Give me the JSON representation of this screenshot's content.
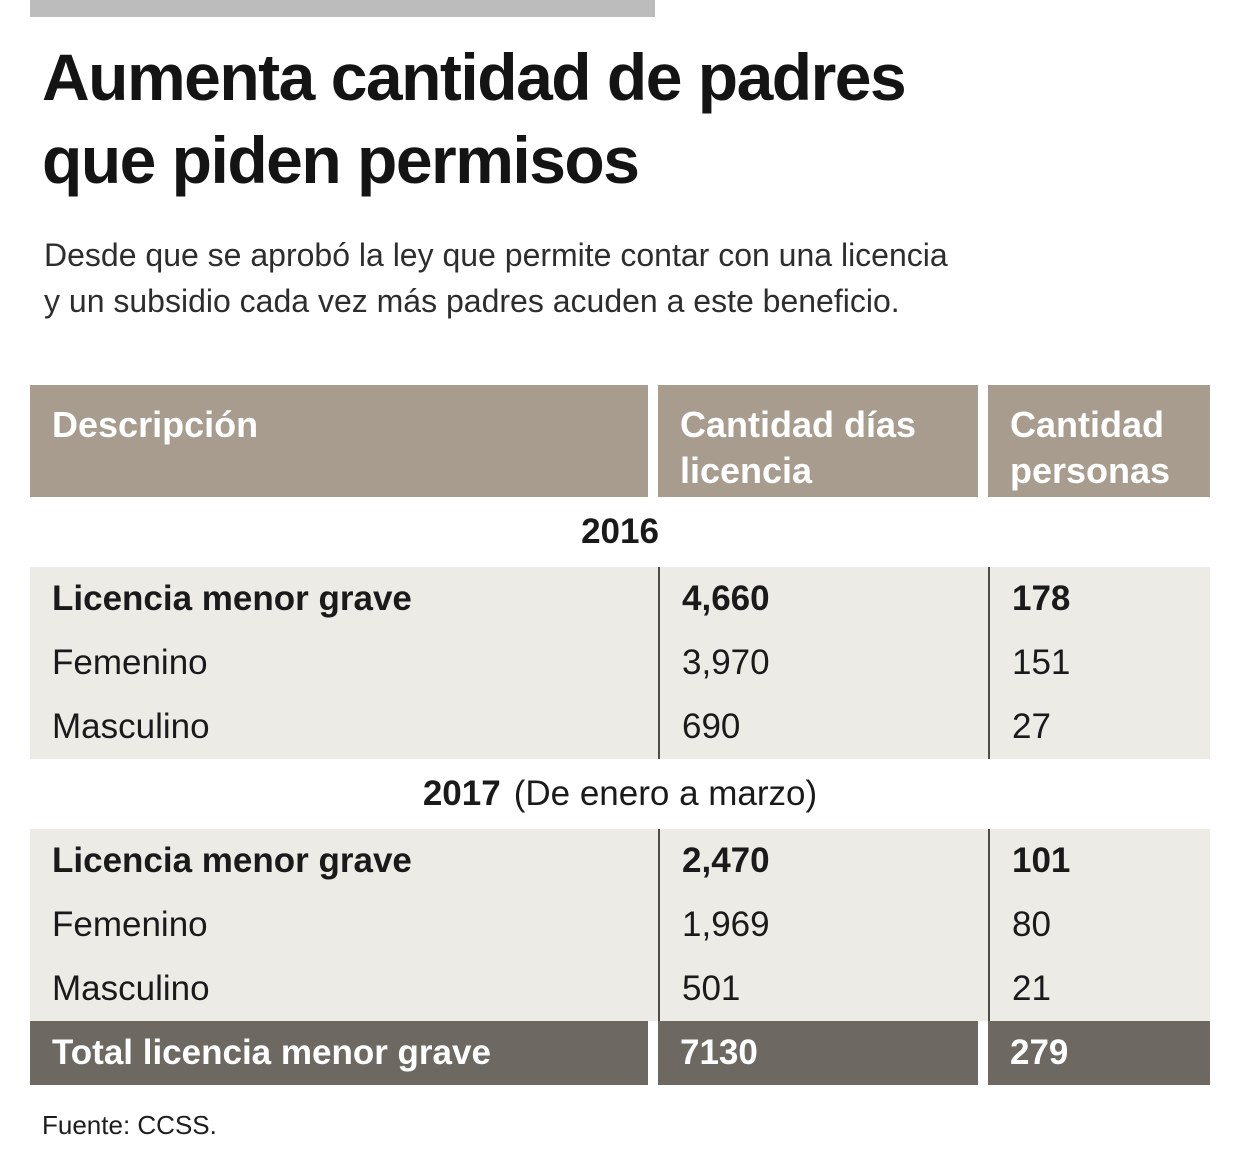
{
  "page": {
    "title_lines": [
      "Aumenta cantidad de padres",
      "que piden permisos"
    ],
    "subtitle_lines": [
      "Desde que se aprobó la ley que permite contar con una licencia",
      "y un subsidio cada vez más padres acuden a este beneficio."
    ],
    "source": "Fuente: CCSS."
  },
  "table": {
    "columns": [
      "Descripción",
      "Cantidad días licencia",
      "Cantidad personas"
    ],
    "sections": [
      {
        "year": "2016",
        "year_suffix": "",
        "rows": [
          {
            "descripcion": "Licencia menor grave",
            "dias": "4,660",
            "personas": "178"
          },
          {
            "descripcion": "Femenino",
            "dias": "3,970",
            "personas": "151"
          },
          {
            "descripcion": "Masculino",
            "dias": "690",
            "personas": "27"
          }
        ]
      },
      {
        "year": "2017",
        "year_suffix": "(De enero a marzo)",
        "rows": [
          {
            "descripcion": "Licencia menor grave",
            "dias": "2,470",
            "personas": "101"
          },
          {
            "descripcion": "Femenino",
            "dias": "1,969",
            "personas": "80"
          },
          {
            "descripcion": "Masculino",
            "dias": "501",
            "personas": "21"
          }
        ]
      }
    ],
    "total": {
      "descripcion": "Total licencia menor grave",
      "dias": "7130",
      "personas": "279"
    }
  },
  "colors": {
    "header_bg": "#a79c8e",
    "row_bg": "#edebe6",
    "year_band_bg": "#ffffff",
    "total_bg": "#6e6862",
    "top_bar": "#bcbcbc",
    "column_divider": "#4f4b46",
    "header_text": "#ffffff",
    "body_text": "#1a1a1a"
  },
  "chart_data": {
    "type": "table",
    "title": "Aumenta cantidad de padres que piden permisos",
    "subtitle": "Desde que se aprobó la ley que permite contar con una licencia y un subsidio cada vez más padres acuden a este beneficio.",
    "columns": [
      "Descripción",
      "Cantidad días licencia",
      "Cantidad personas"
    ],
    "sections": [
      {
        "label": "2016",
        "rows": [
          [
            "Licencia menor grave",
            4660,
            178
          ],
          [
            "Femenino",
            3970,
            151
          ],
          [
            "Masculino",
            690,
            27
          ]
        ]
      },
      {
        "label": "2017 (De enero a marzo)",
        "rows": [
          [
            "Licencia menor grave",
            2470,
            101
          ],
          [
            "Femenino",
            1969,
            80
          ],
          [
            "Masculino",
            501,
            21
          ]
        ]
      }
    ],
    "total": [
      "Total licencia menor grave",
      7130,
      279
    ],
    "source": "Fuente: CCSS."
  }
}
